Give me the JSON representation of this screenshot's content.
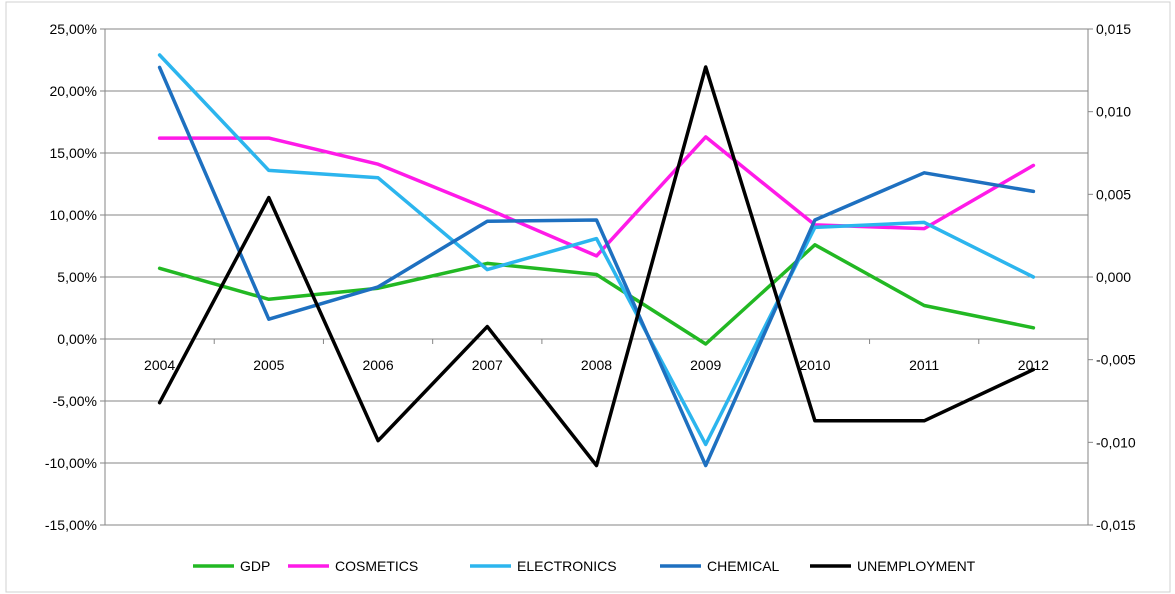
{
  "chart_data": {
    "type": "line",
    "categories": [
      "2004",
      "2005",
      "2006",
      "2007",
      "2008",
      "2009",
      "2010",
      "2011",
      "2012"
    ],
    "y_left": {
      "ylim": [
        -0.15,
        0.25
      ],
      "ticks": [
        0.25,
        0.2,
        0.15,
        0.1,
        0.05,
        0.0,
        -0.05,
        -0.1,
        -0.15
      ],
      "tick_labels": [
        "25,00%",
        "20,00%",
        "15,00%",
        "10,00%",
        "5,00%",
        "0,00%",
        "-5,00%",
        "-10,00%",
        "-15,00%"
      ]
    },
    "y_right": {
      "ylim": [
        -0.015,
        0.015
      ],
      "ticks": [
        0.015,
        0.01,
        0.005,
        0.0,
        -0.005,
        -0.01,
        -0.015
      ],
      "tick_labels": [
        "0,015",
        "0,010",
        "0,005",
        "0,000",
        "-0,005",
        "-0,010",
        "-0,015"
      ]
    },
    "grid": true,
    "legend_position": "bottom",
    "series": [
      {
        "name": "GDP",
        "axis": "left",
        "color": "#22b823",
        "values": [
          0.057,
          0.032,
          0.041,
          0.061,
          0.052,
          -0.004,
          0.076,
          0.027,
          0.009
        ]
      },
      {
        "name": "COSMETICS",
        "axis": "left",
        "color": "#ff1ae8",
        "values": [
          0.162,
          0.162,
          0.141,
          0.105,
          0.067,
          0.163,
          0.092,
          0.089,
          0.14
        ]
      },
      {
        "name": "ELECTRONICS",
        "axis": "left",
        "color": "#2cb5ee",
        "values": [
          0.229,
          0.136,
          0.13,
          0.056,
          0.081,
          -0.085,
          0.09,
          0.094,
          0.05
        ]
      },
      {
        "name": "CHEMICAL",
        "axis": "left",
        "color": "#1e70c0",
        "values": [
          0.219,
          0.016,
          0.042,
          0.095,
          0.096,
          -0.102,
          0.096,
          0.134,
          0.119
        ]
      },
      {
        "name": "UNEMPLOYMENT",
        "axis": "right",
        "color": "#000000",
        "values": [
          -0.0076,
          0.0048,
          -0.0099,
          -0.003,
          -0.0114,
          0.0127,
          -0.0087,
          -0.0087,
          -0.0056
        ]
      }
    ]
  }
}
